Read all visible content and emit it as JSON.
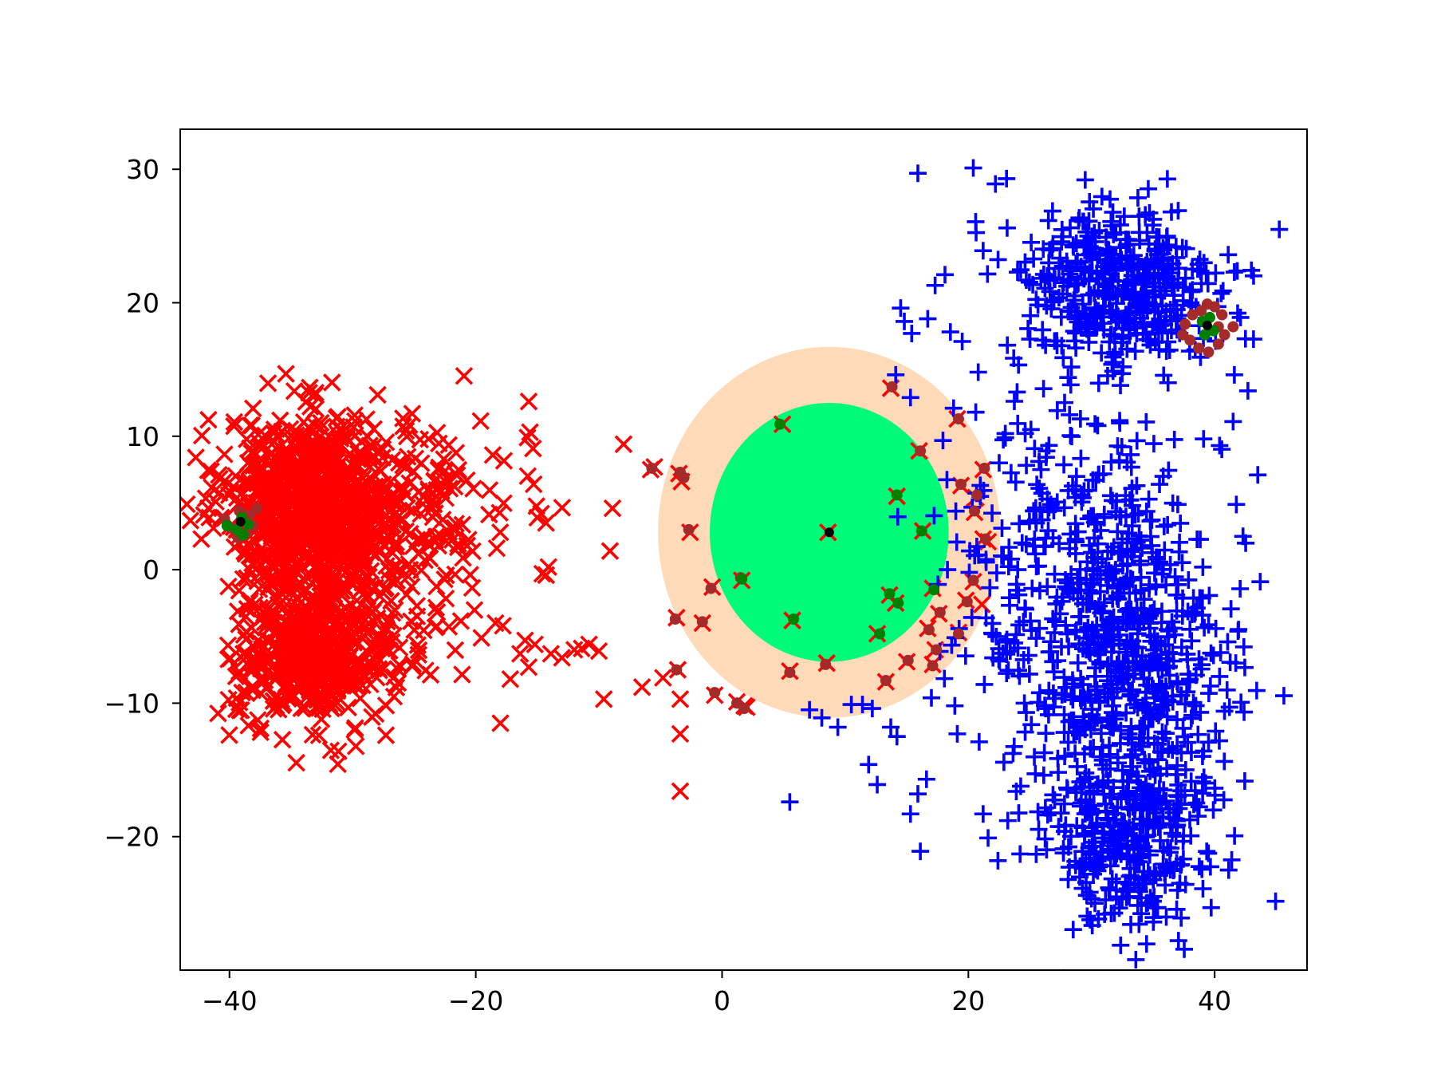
{
  "chart_data": {
    "type": "scatter",
    "title": "",
    "xlabel": "",
    "ylabel": "",
    "xlim": [
      -44,
      47.5
    ],
    "ylim": [
      -30,
      33
    ],
    "x_ticks": [
      -40,
      -20,
      0,
      20,
      40
    ],
    "y_ticks": [
      -20,
      -10,
      0,
      10,
      20,
      30
    ],
    "x_tick_labels": [
      "−40",
      "−20",
      "0",
      "20",
      "40"
    ],
    "y_tick_labels": [
      "−20",
      "−10",
      "0",
      "10",
      "20",
      "30"
    ],
    "grid": false,
    "legend": "none",
    "colors": {
      "class_x": "#ff0000",
      "class_plus": "#0000ff",
      "outer_region": "#ffdab9",
      "inner_region": "#00fa7a",
      "highlight_brown": "#a52a2a",
      "highlight_green": "#008000",
      "center": "#000000"
    },
    "regions": [
      {
        "kind": "outer",
        "center": [
          8.7,
          2.8
        ],
        "rx": 13.9,
        "ry": 13.9,
        "color": "#ffdab9"
      },
      {
        "kind": "inner",
        "center": [
          8.7,
          2.8
        ],
        "rx": 9.7,
        "ry": 9.7,
        "color": "#00fa7a"
      }
    ],
    "series": [
      {
        "marker": "x",
        "color": "#ff0000",
        "clusters": [
          {
            "center": [
              -33,
              5
            ],
            "spread": [
              3.6,
              3.2
            ],
            "count": 900
          },
          {
            "center": [
              -33,
              -6
            ],
            "spread": [
              3.2,
              2.8
            ],
            "count": 550
          },
          {
            "center": [
              -24,
              3
            ],
            "spread": [
              3.6,
              4.2
            ],
            "count": 160
          }
        ],
        "points": [
          [
            -15.7,
            12.6
          ],
          [
            -15.6,
            10.3
          ],
          [
            -15.8,
            9.9
          ],
          [
            -15.3,
            6.4
          ],
          [
            -14.7,
            4.2
          ],
          [
            -14.3,
            3.5
          ],
          [
            -15.0,
            3.9
          ],
          [
            -14.1,
            0.2
          ],
          [
            -14.3,
            -0.4
          ],
          [
            -14.6,
            -0.3
          ],
          [
            -16.0,
            -5.3
          ],
          [
            -15.2,
            -5.6
          ],
          [
            -15.7,
            -7.3
          ],
          [
            -16.4,
            -6.3
          ],
          [
            -17.2,
            -8.2
          ],
          [
            -18.0,
            -11.5
          ],
          [
            -17.8,
            -4.2
          ],
          [
            -18.4,
            -4.0
          ],
          [
            -13.9,
            -6.3
          ],
          [
            -13.0,
            -6.6
          ],
          [
            -12.0,
            -6.0
          ],
          [
            -11.4,
            -5.9
          ],
          [
            -10.8,
            -5.6
          ],
          [
            -10.0,
            -6.1
          ],
          [
            -9.6,
            -9.7
          ],
          [
            -8.0,
            9.4
          ],
          [
            -8.9,
            4.6
          ],
          [
            -9.1,
            1.4
          ],
          [
            -5.8,
            7.5
          ],
          [
            -5.5,
            7.7
          ],
          [
            -3.5,
            7.2
          ],
          [
            -3.3,
            6.6
          ],
          [
            -2.6,
            2.8
          ],
          [
            -0.8,
            -1.3
          ],
          [
            -1.6,
            -4.0
          ],
          [
            -3.7,
            -3.6
          ],
          [
            -3.6,
            -7.5
          ],
          [
            -4.8,
            -8.1
          ],
          [
            -6.5,
            -8.8
          ],
          [
            -3.4,
            -9.7
          ],
          [
            -3.4,
            -12.3
          ],
          [
            -3.4,
            -16.6
          ],
          [
            -0.6,
            -9.4
          ],
          [
            1.2,
            -9.9
          ],
          [
            1.8,
            -10.2
          ],
          [
            2.0,
            -10.3
          ],
          [
            1.6,
            -0.8
          ],
          [
            4.9,
            10.9
          ],
          [
            5.7,
            -3.8
          ],
          [
            5.5,
            -7.6
          ],
          [
            8.5,
            -7.0
          ],
          [
            8.6,
            2.8
          ],
          [
            13.7,
            13.6
          ],
          [
            14.2,
            5.5
          ],
          [
            16.0,
            8.9
          ],
          [
            16.3,
            2.9
          ],
          [
            13.6,
            -1.9
          ],
          [
            14.1,
            -2.5
          ],
          [
            13.3,
            -8.4
          ],
          [
            12.6,
            -4.8
          ],
          [
            15.0,
            -6.9
          ],
          [
            17.1,
            -1.4
          ],
          [
            17.6,
            -3.3
          ],
          [
            16.7,
            -4.4
          ],
          [
            17.3,
            -6.0
          ],
          [
            17.1,
            -7.1
          ],
          [
            19.2,
            -4.7
          ],
          [
            19.8,
            -2.3
          ],
          [
            19.4,
            6.3
          ],
          [
            19.1,
            11.3
          ],
          [
            21.2,
            7.5
          ],
          [
            20.6,
            5.4
          ],
          [
            20.5,
            4.3
          ],
          [
            21.2,
            2.3
          ],
          [
            21.6,
            2.1
          ],
          [
            20.4,
            -0.9
          ],
          [
            21.1,
            -2.6
          ]
        ]
      },
      {
        "marker": "plus",
        "color": "#0000ff",
        "clusters": [
          {
            "center": [
              32,
              21
            ],
            "spread": [
              4.2,
              3.2
            ],
            "count": 430
          },
          {
            "center": [
              33,
              -7
            ],
            "spread": [
              4.0,
              5.8
            ],
            "count": 560
          },
          {
            "center": [
              33,
              -20
            ],
            "spread": [
              3.2,
              3.6
            ],
            "count": 330
          },
          {
            "center": [
              27,
              2
            ],
            "spread": [
              4.6,
              5.5
            ],
            "count": 220
          }
        ],
        "points": [
          [
            15.9,
            29.7
          ],
          [
            20.4,
            30.1
          ],
          [
            22.2,
            28.9
          ],
          [
            23.1,
            29.3
          ],
          [
            17.3,
            21.3
          ],
          [
            14.5,
            19.6
          ],
          [
            14.8,
            18.6
          ],
          [
            15.4,
            17.7
          ],
          [
            16.7,
            18.8
          ],
          [
            18.1,
            22.1
          ],
          [
            21.2,
            23.9
          ],
          [
            19.5,
            17.1
          ],
          [
            14.1,
            14.6
          ],
          [
            15.3,
            12.9
          ],
          [
            18.8,
            12.1
          ],
          [
            20.6,
            11.8
          ],
          [
            23.0,
            10.2
          ],
          [
            22.5,
            8.0
          ],
          [
            20.8,
            14.8
          ],
          [
            12.2,
            -10.4
          ],
          [
            11.4,
            -10.1
          ],
          [
            10.5,
            -10.1
          ],
          [
            9.4,
            -11.8
          ],
          [
            8.1,
            -11.1
          ],
          [
            7.1,
            -10.5
          ],
          [
            5.5,
            -17.4
          ],
          [
            11.9,
            -14.6
          ],
          [
            12.6,
            -16.1
          ],
          [
            13.7,
            -11.8
          ],
          [
            14.2,
            -12.5
          ],
          [
            15.3,
            -18.3
          ],
          [
            15.9,
            -16.8
          ],
          [
            16.1,
            -21.1
          ],
          [
            16.6,
            -15.7
          ],
          [
            17.0,
            -9.6
          ],
          [
            18.9,
            -10.2
          ],
          [
            19.1,
            -12.3
          ],
          [
            21.3,
            -8.6
          ],
          [
            22.0,
            -6.6
          ],
          [
            23.4,
            -6.1
          ],
          [
            24.7,
            -10.7
          ],
          [
            21.2,
            -18.3
          ],
          [
            21.6,
            -20.1
          ],
          [
            22.4,
            -21.8
          ],
          [
            23.2,
            -18.8
          ],
          [
            24.2,
            -21.3
          ],
          [
            39.1,
            9.8
          ],
          [
            40.4,
            9.3
          ],
          [
            41.5,
            11.1
          ],
          [
            42.7,
            13.4
          ],
          [
            43.5,
            7.1
          ],
          [
            42.3,
            2.5
          ],
          [
            43.7,
            -0.9
          ],
          [
            41.9,
            -4.6
          ],
          [
            40.4,
            -8.0
          ],
          [
            40.8,
            -10.6
          ],
          [
            41.2,
            -10.3
          ],
          [
            41.6,
            14.6
          ],
          [
            41.1,
            23.6
          ],
          [
            41.6,
            22.3
          ],
          [
            42.1,
            18.9
          ],
          [
            42.5,
            17.3
          ],
          [
            27.2,
            16.8
          ],
          [
            28.1,
            14.4
          ],
          [
            29.1,
            11.3
          ],
          [
            30.5,
            10.8
          ],
          [
            25.9,
            7.5
          ],
          [
            25.3,
            4.4
          ],
          [
            24.7,
            1.9
          ]
        ]
      },
      {
        "marker": "dot",
        "color": "#a52a2a",
        "points": [
          [
            -3.4,
            7.3
          ],
          [
            -3.1,
            6.9
          ],
          [
            -5.7,
            7.6
          ],
          [
            -2.7,
            3.0
          ],
          [
            -0.9,
            -1.4
          ],
          [
            1.5,
            -0.6
          ],
          [
            -1.6,
            -3.9
          ],
          [
            -3.8,
            -3.7
          ],
          [
            -3.7,
            -7.5
          ],
          [
            -0.6,
            -9.2
          ],
          [
            1.2,
            -10.0
          ],
          [
            1.8,
            -10.4
          ],
          [
            5.5,
            -7.7
          ],
          [
            8.4,
            -7.1
          ],
          [
            13.3,
            -8.3
          ],
          [
            15.1,
            -6.8
          ],
          [
            17.1,
            -7.2
          ],
          [
            17.4,
            -6.0
          ],
          [
            16.8,
            -4.5
          ],
          [
            17.7,
            -3.2
          ],
          [
            19.2,
            -4.8
          ],
          [
            19.9,
            -2.4
          ],
          [
            20.4,
            -0.8
          ],
          [
            20.5,
            4.4
          ],
          [
            20.7,
            5.6
          ],
          [
            19.4,
            6.4
          ],
          [
            21.3,
            7.6
          ],
          [
            21.4,
            2.3
          ],
          [
            19.2,
            11.3
          ],
          [
            13.8,
            13.7
          ],
          [
            16.1,
            8.9
          ],
          [
            37.6,
            18.4
          ],
          [
            38.2,
            19.1
          ],
          [
            38.9,
            19.4
          ],
          [
            39.4,
            19.9
          ],
          [
            40.0,
            19.7
          ],
          [
            40.6,
            19.1
          ],
          [
            40.3,
            18.2
          ],
          [
            40.8,
            17.6
          ],
          [
            38.0,
            17.2
          ],
          [
            38.7,
            16.6
          ],
          [
            39.5,
            16.3
          ],
          [
            40.3,
            16.9
          ],
          [
            41.5,
            18.2
          ],
          [
            37.4,
            17.6
          ],
          [
            -39.2,
            4.4
          ],
          [
            -38.4,
            4.1
          ],
          [
            -38.6,
            2.8
          ],
          [
            -39.8,
            3.1
          ],
          [
            -40.4,
            3.8
          ],
          [
            -38.1,
            3.3
          ],
          [
            -39.3,
            2.4
          ],
          [
            -37.8,
            4.6
          ]
        ]
      },
      {
        "marker": "dot",
        "color": "#008000",
        "points": [
          [
            4.7,
            10.9
          ],
          [
            5.8,
            -3.7
          ],
          [
            14.2,
            5.6
          ],
          [
            16.2,
            2.9
          ],
          [
            13.6,
            -1.8
          ],
          [
            14.3,
            -2.5
          ],
          [
            17.2,
            -1.5
          ],
          [
            12.8,
            -4.8
          ],
          [
            1.6,
            -0.7
          ],
          [
            39.0,
            18.6
          ],
          [
            39.6,
            18.9
          ],
          [
            39.2,
            17.6
          ],
          [
            39.9,
            17.9
          ],
          [
            -39.0,
            3.9
          ],
          [
            -38.5,
            3.4
          ],
          [
            -39.4,
            3.0
          ],
          [
            -38.9,
            2.6
          ],
          [
            -40.2,
            3.3
          ]
        ]
      },
      {
        "marker": "center",
        "color": "#000000",
        "points": [
          [
            8.7,
            2.8
          ],
          [
            39.4,
            18.3
          ],
          [
            -39.1,
            3.6
          ]
        ]
      }
    ]
  }
}
